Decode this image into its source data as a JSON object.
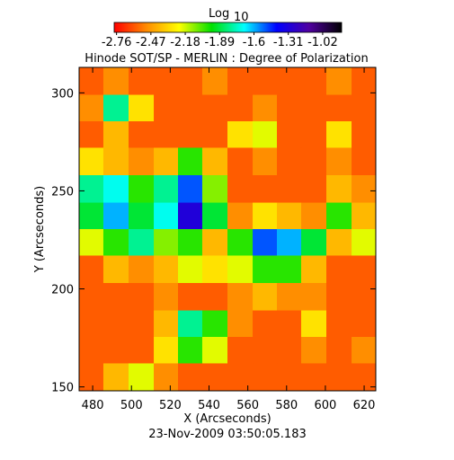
{
  "chart_data": {
    "type": "heatmap",
    "title": "Hinode SOT/SP - MERLIN : Degree of Polarization",
    "xlabel": "X (Arcseconds)",
    "ylabel": "Y (Arcseconds)",
    "footer": "23-Nov-2009 03:50:05.183",
    "colorbar": {
      "label": "Log",
      "label_sub": "10",
      "lim": [
        -2.78,
        -0.86
      ],
      "ticks": [
        -2.76,
        -2.47,
        -2.18,
        -1.89,
        -1.6,
        -1.31,
        -1.02
      ]
    },
    "colormap": [
      "#ff0000",
      "#ff8c00",
      "#ffff00",
      "#00e000",
      "#00ffff",
      "#0000ff",
      "#5000a0",
      "#000000"
    ],
    "xlim": [
      473,
      626
    ],
    "ylim": [
      148,
      313
    ],
    "xticks": [
      480,
      500,
      520,
      540,
      560,
      580,
      600,
      620
    ],
    "yticks": [
      150,
      200,
      250,
      300
    ],
    "x": [
      479,
      492,
      505,
      518,
      530,
      543,
      556,
      569,
      581,
      594,
      607,
      620
    ],
    "y": [
      306,
      292,
      279,
      265,
      251,
      237,
      224,
      210,
      196,
      182,
      169,
      155
    ],
    "z": [
      [
        -2.6,
        -2.5,
        -2.6,
        -2.6,
        -2.6,
        -2.5,
        -2.6,
        -2.6,
        -2.6,
        -2.6,
        -2.5,
        -2.6
      ],
      [
        -2.5,
        -1.8,
        -2.3,
        -2.6,
        -2.6,
        -2.6,
        -2.6,
        -2.5,
        -2.6,
        -2.6,
        -2.6,
        -2.6
      ],
      [
        -2.6,
        -2.4,
        -2.6,
        -2.6,
        -2.6,
        -2.6,
        -2.3,
        -2.2,
        -2.6,
        -2.6,
        -2.3,
        -2.6
      ],
      [
        -2.3,
        -2.4,
        -2.5,
        -2.4,
        -2.0,
        -2.4,
        -2.6,
        -2.5,
        -2.6,
        -2.6,
        -2.5,
        -2.6
      ],
      [
        -1.8,
        -1.7,
        -2.0,
        -1.8,
        -1.5,
        -2.1,
        -2.6,
        -2.6,
        -2.6,
        -2.6,
        -2.4,
        -2.5
      ],
      [
        -1.9,
        -1.6,
        -1.9,
        -1.7,
        -1.3,
        -1.9,
        -2.5,
        -2.3,
        -2.4,
        -2.5,
        -2.0,
        -2.4
      ],
      [
        -2.2,
        -2.0,
        -1.8,
        -2.1,
        -2.0,
        -2.4,
        -2.0,
        -1.5,
        -1.6,
        -1.9,
        -2.4,
        -2.2
      ],
      [
        -2.6,
        -2.4,
        -2.5,
        -2.4,
        -2.2,
        -2.3,
        -2.2,
        -2.0,
        -2.0,
        -2.4,
        -2.6,
        -2.6
      ],
      [
        -2.6,
        -2.6,
        -2.6,
        -2.5,
        -2.6,
        -2.6,
        -2.5,
        -2.4,
        -2.5,
        -2.5,
        -2.6,
        -2.6
      ],
      [
        -2.6,
        -2.6,
        -2.6,
        -2.4,
        -1.8,
        -2.0,
        -2.5,
        -2.6,
        -2.6,
        -2.3,
        -2.6,
        -2.6
      ],
      [
        -2.6,
        -2.6,
        -2.6,
        -2.3,
        -2.0,
        -2.2,
        -2.6,
        -2.6,
        -2.6,
        -2.5,
        -2.6,
        -2.5
      ],
      [
        -2.6,
        -2.4,
        -2.2,
        -2.5,
        -2.6,
        -2.6,
        -2.6,
        -2.6,
        -2.6,
        -2.6,
        -2.6,
        -2.6
      ]
    ]
  }
}
